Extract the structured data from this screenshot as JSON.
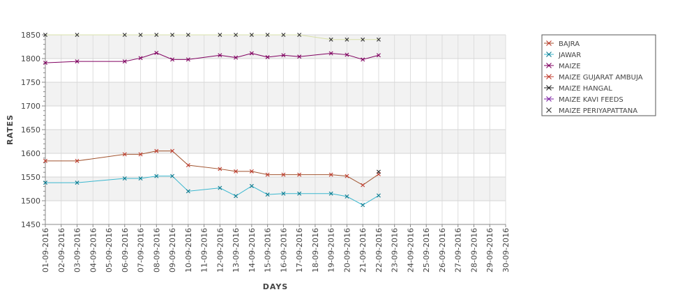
{
  "chart_data": {
    "type": "line",
    "xlabel": "DAYS",
    "ylabel": "RATES",
    "ylim": [
      1450,
      1850
    ],
    "yticks": [
      1450,
      1500,
      1550,
      1600,
      1650,
      1700,
      1750,
      1800,
      1850
    ],
    "grid": true,
    "legend_position": "top-right",
    "categories": [
      "01-09-2016",
      "02-09-2016",
      "03-09-2016",
      "04-09-2016",
      "05-09-2016",
      "06-09-2016",
      "07-09-2016",
      "08-09-2016",
      "09-09-2016",
      "10-09-2016",
      "11-09-2016",
      "12-09-2016",
      "13-09-2016",
      "14-09-2016",
      "15-09-2016",
      "16-09-2016",
      "17-09-2016",
      "18-09-2016",
      "19-09-2016",
      "20-09-2016",
      "21-09-2016",
      "22-09-2016",
      "23-09-2016",
      "24-09-2016",
      "25-09-2016",
      "26-09-2016",
      "27-09-2016",
      "28-09-2016",
      "29-09-2016",
      "30-09-2016"
    ],
    "series": [
      {
        "name": "BAJRA",
        "color": "#a0522d",
        "marker_color": "#c0392b",
        "values": [
          1584,
          null,
          1584,
          null,
          null,
          1598,
          1598,
          1605,
          1605,
          1575,
          null,
          1567,
          1562,
          1562,
          1555,
          1555,
          1555,
          null,
          1555,
          1552,
          1533,
          1556,
          null,
          null,
          null,
          null,
          null,
          null,
          null,
          null
        ]
      },
      {
        "name": "JAWAR",
        "color": "#3ab7cf",
        "marker_color": "#0b7a8f",
        "values": [
          1538,
          null,
          1538,
          null,
          null,
          1547,
          1547,
          1552,
          1552,
          1520,
          null,
          1527,
          1510,
          1531,
          1513,
          1515,
          1515,
          null,
          1515,
          1509,
          1491,
          1511,
          null,
          null,
          null,
          null,
          null,
          null,
          null,
          null
        ]
      },
      {
        "name": "MAIZE",
        "color": "#800060",
        "marker_color": "#800060",
        "values": [
          1791,
          null,
          1794,
          null,
          null,
          1794,
          1801,
          1812,
          1798,
          1798,
          null,
          1807,
          1802,
          1811,
          1803,
          1807,
          1804,
          null,
          1811,
          1808,
          1798,
          1807,
          null,
          null,
          null,
          null,
          null,
          null,
          null,
          null
        ]
      },
      {
        "name": "MAIZE GUJARAT AMBUJA",
        "color": "#c0392b",
        "marker_color": "#c0392b",
        "values": [
          null,
          null,
          null,
          null,
          null,
          null,
          null,
          null,
          null,
          null,
          null,
          null,
          null,
          null,
          null,
          null,
          null,
          null,
          null,
          null,
          null,
          null,
          null,
          null,
          null,
          null,
          null,
          null,
          null,
          null
        ]
      },
      {
        "name": "MAIZE HANGAL",
        "color": "#222222",
        "marker_color": "#222222",
        "values": [
          null,
          null,
          null,
          null,
          null,
          null,
          null,
          null,
          null,
          null,
          null,
          null,
          null,
          null,
          null,
          null,
          null,
          null,
          null,
          null,
          null,
          1561,
          null,
          null,
          null,
          null,
          null,
          null,
          null,
          null
        ]
      },
      {
        "name": "MAIZE KAVI FEEDS",
        "color": "#7b1fa2",
        "marker_color": "#7b1fa2",
        "values": [
          null,
          null,
          null,
          null,
          null,
          null,
          null,
          null,
          null,
          null,
          null,
          null,
          null,
          null,
          null,
          null,
          null,
          null,
          null,
          null,
          null,
          null,
          null,
          null,
          null,
          null,
          null,
          null,
          null,
          null
        ]
      },
      {
        "name": "MAIZE PERIYAPATTANA",
        "color": "#d8e0a8",
        "marker_color": "#333333",
        "values": [
          1850,
          null,
          1850,
          null,
          null,
          1850,
          1850,
          1850,
          1850,
          1850,
          null,
          1850,
          1850,
          1850,
          1850,
          1850,
          1850,
          null,
          1840,
          1840,
          1840,
          1840,
          null,
          null,
          null,
          null,
          null,
          null,
          null,
          null
        ]
      }
    ]
  }
}
